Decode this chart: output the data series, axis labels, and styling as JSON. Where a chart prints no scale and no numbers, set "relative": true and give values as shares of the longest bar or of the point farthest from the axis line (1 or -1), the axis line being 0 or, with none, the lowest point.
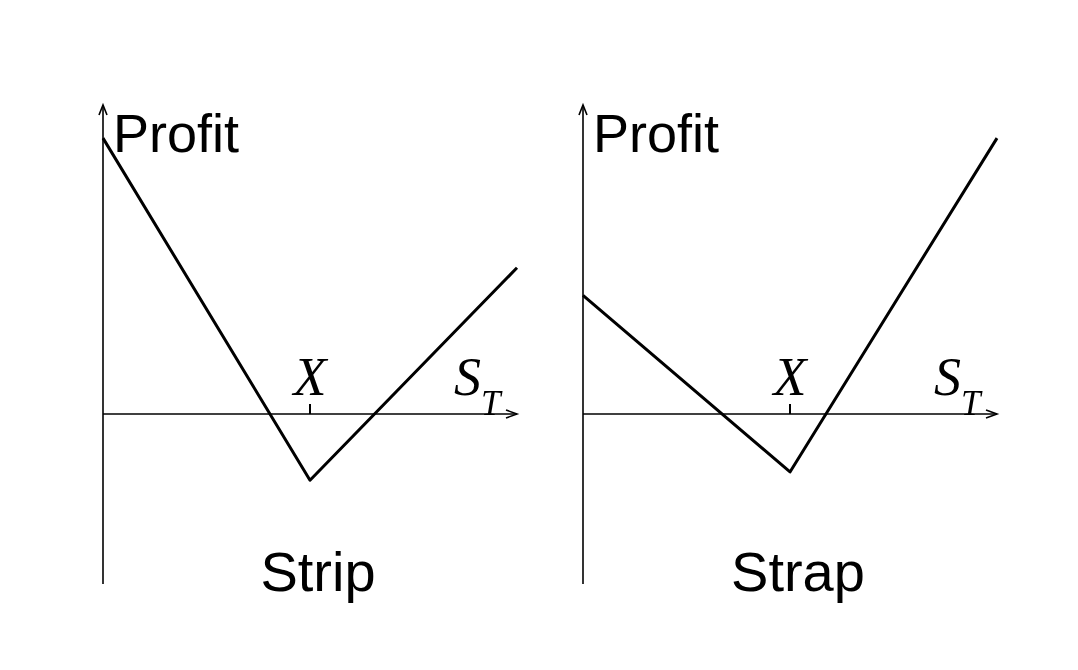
{
  "chart_data": [
    {
      "type": "line",
      "title": "Strip",
      "xlabel": "S$_{T}$",
      "ylabel": "Profit",
      "relative": true,
      "categories": [
        null,
        null,
        null
      ],
      "values": [
        1,
        -0.24,
        0.53
      ],
      "color": "#000000",
      "annotations": [
        "X"
      ]
    },
    {
      "type": "line",
      "title": "Strap",
      "xlabel": "S$_{T}$",
      "ylabel": "Profit",
      "relative": true,
      "categories": [
        null,
        null,
        null
      ],
      "values": [
        0.43,
        -0.21,
        1
      ],
      "color": "#000000",
      "annotations": [
        "X"
      ]
    }
  ]
}
